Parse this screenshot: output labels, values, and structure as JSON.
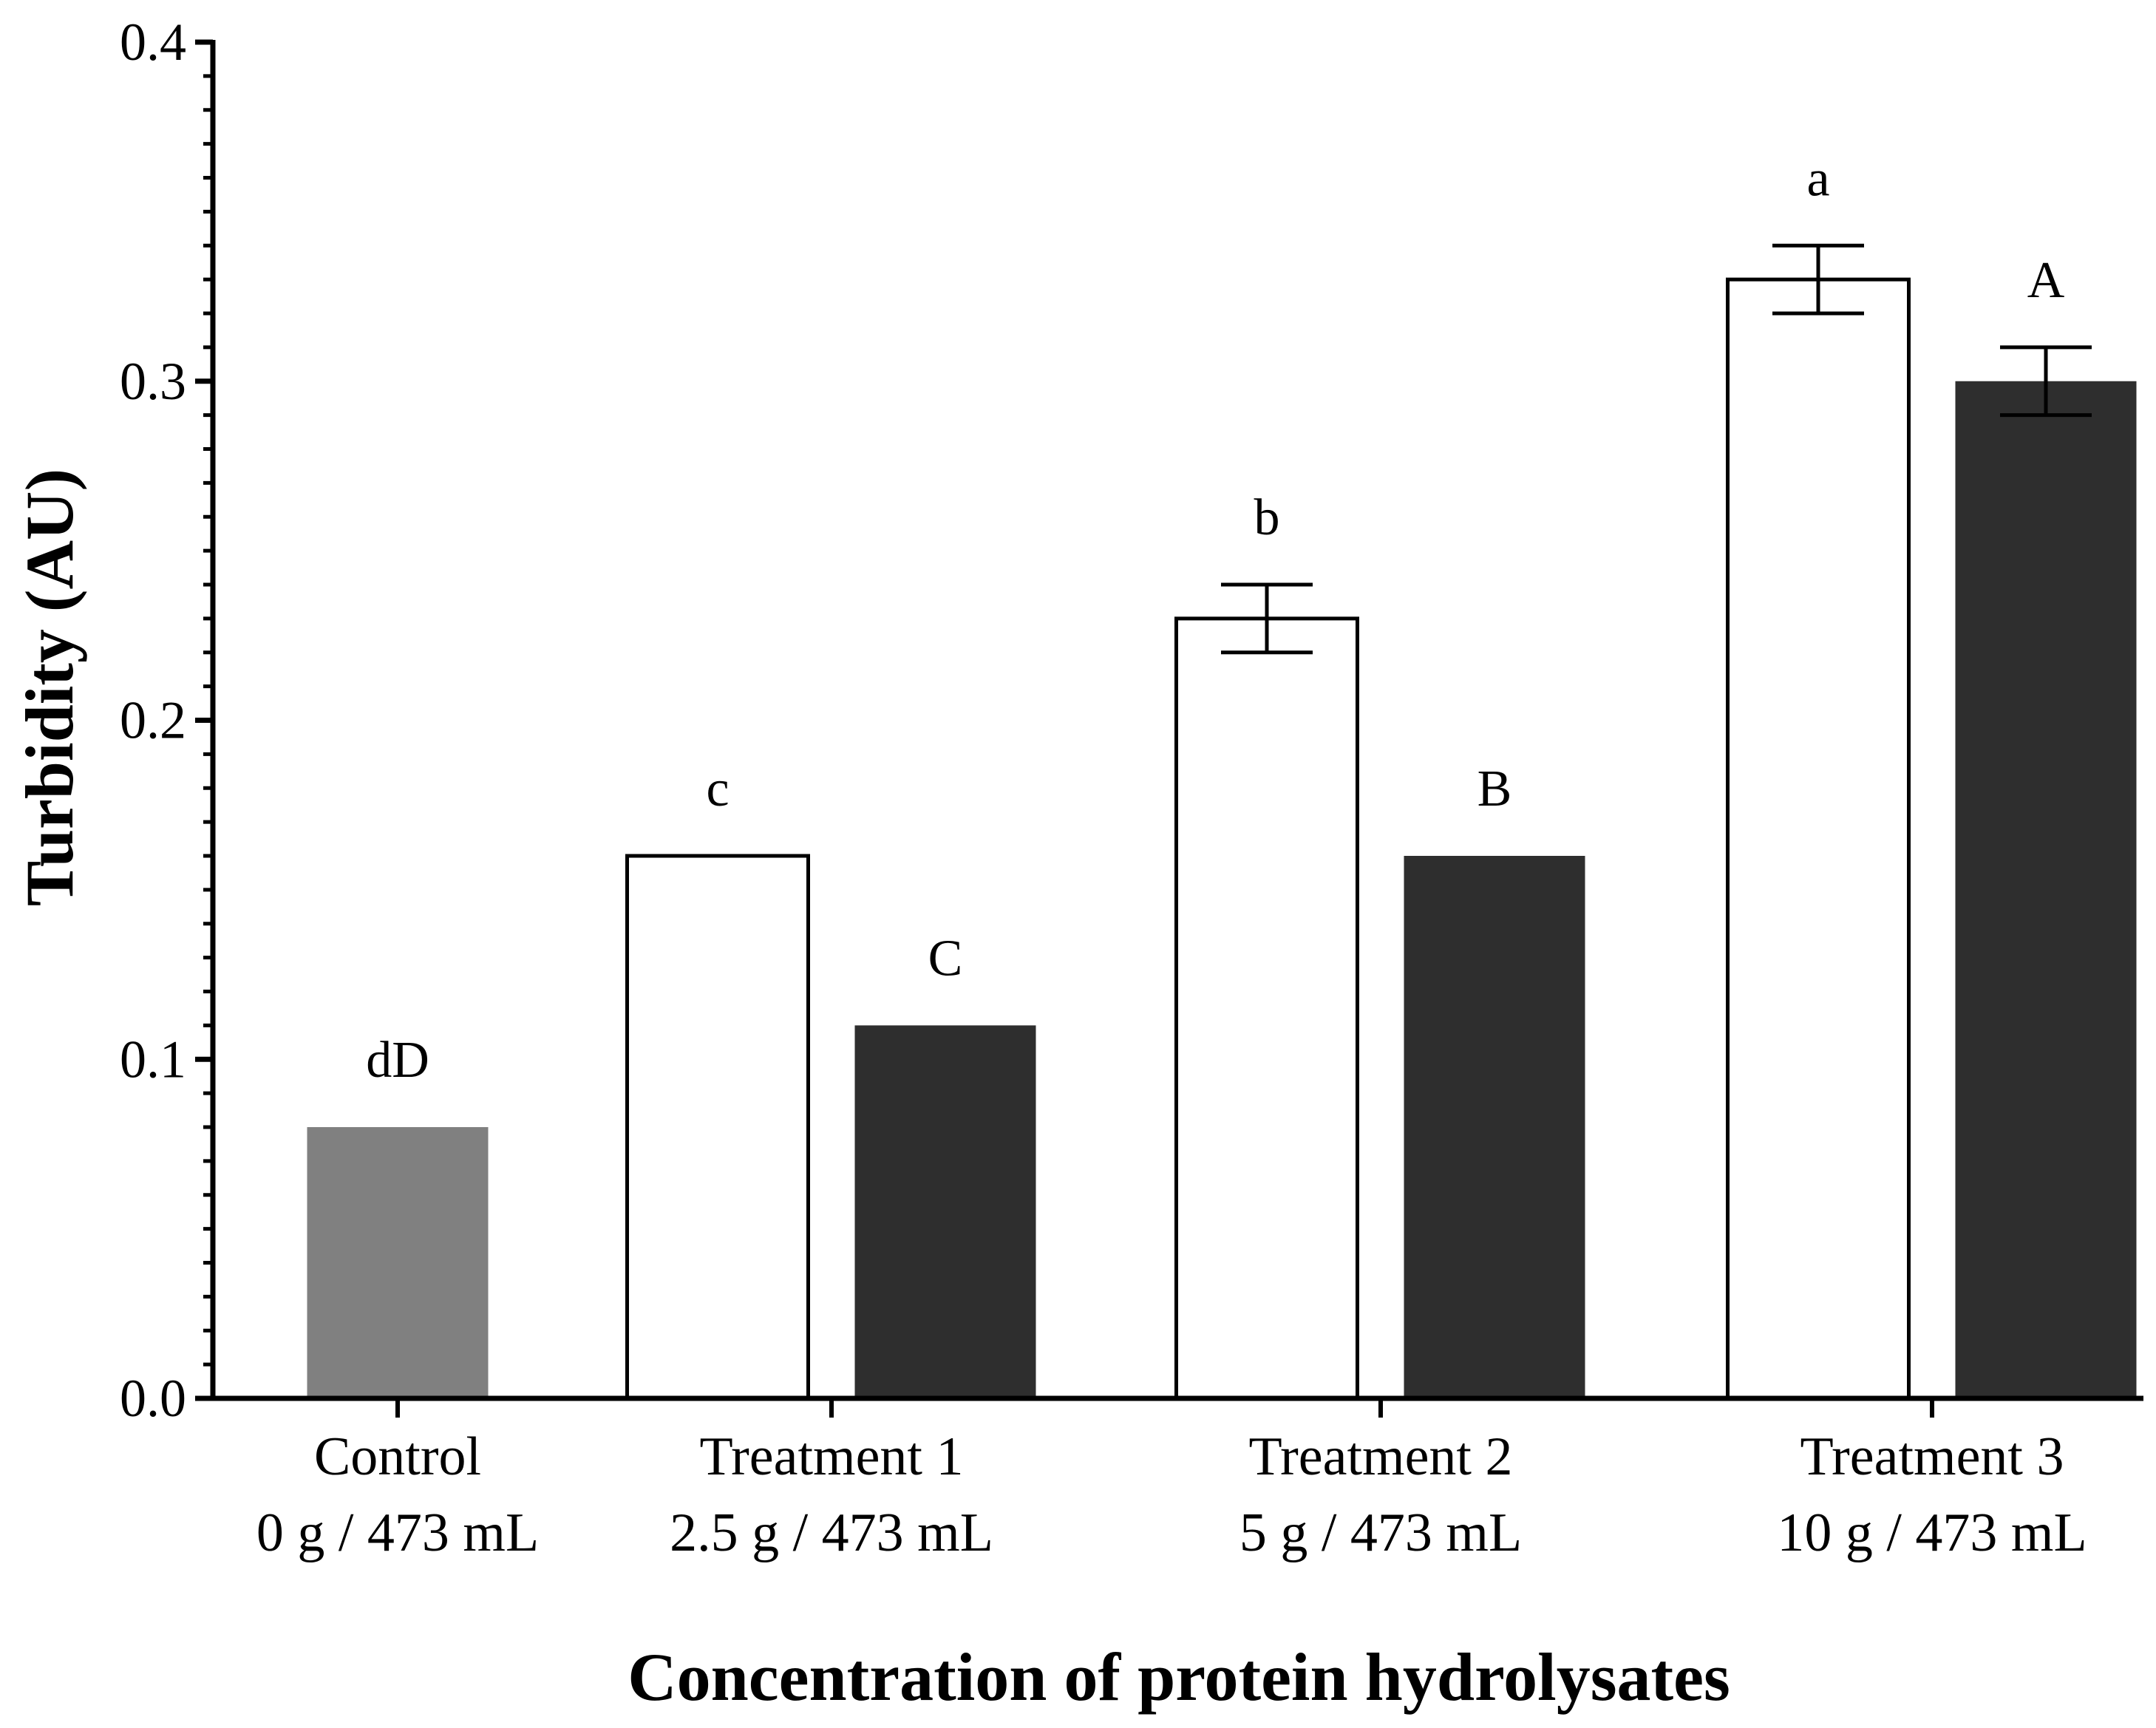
{
  "chart_data": {
    "type": "bar",
    "title": "",
    "xlabel": "Concentration of protein hydrolysates",
    "ylabel": "Turbidity (AU)",
    "ylim": [
      0,
      0.4
    ],
    "yticks": [
      "0.0",
      "0.1",
      "0.2",
      "0.3",
      "0.4"
    ],
    "grid": false,
    "legend": "none",
    "categories": [
      {
        "line1": "Control",
        "line2": "0 g / 473 mL"
      },
      {
        "line1": "Treatment 1",
        "line2": "2.5 g / 473 mL"
      },
      {
        "line1": "Treatment 2",
        "line2": "5 g / 473 mL"
      },
      {
        "line1": "Treatment 3",
        "line2": "10 g / 473 mL"
      }
    ],
    "bars": [
      {
        "category": 0,
        "slot": "center",
        "fill": "#808080",
        "value": 0.08,
        "error": null,
        "label": "dD"
      },
      {
        "category": 1,
        "slot": "left",
        "fill": "#ffffff",
        "value": 0.16,
        "error": null,
        "label": "c"
      },
      {
        "category": 1,
        "slot": "right",
        "fill": "#2e2e2e",
        "value": 0.11,
        "error": null,
        "label": "C"
      },
      {
        "category": 2,
        "slot": "left",
        "fill": "#ffffff",
        "value": 0.23,
        "error": 0.01,
        "label": "b"
      },
      {
        "category": 2,
        "slot": "right",
        "fill": "#2e2e2e",
        "value": 0.16,
        "error": null,
        "label": "B"
      },
      {
        "category": 3,
        "slot": "left",
        "fill": "#ffffff",
        "value": 0.33,
        "error": 0.01,
        "label": "a"
      },
      {
        "category": 3,
        "slot": "right",
        "fill": "#2e2e2e",
        "value": 0.3,
        "error": 0.01,
        "label": "A"
      }
    ]
  }
}
